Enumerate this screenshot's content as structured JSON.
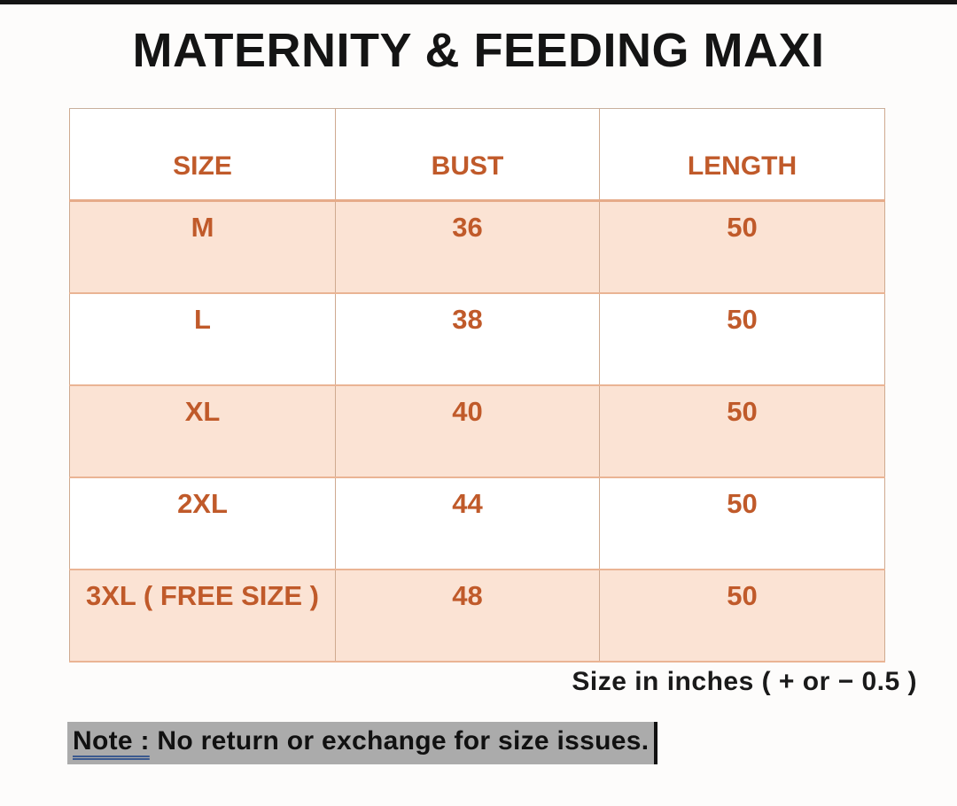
{
  "title": "MATERNITY & FEEDING MAXI",
  "table": {
    "headers": [
      "SIZE",
      "BUST",
      "LENGTH"
    ],
    "rows": [
      [
        "M",
        "36",
        "50"
      ],
      [
        "L",
        "38",
        "50"
      ],
      [
        "XL",
        "40",
        "50"
      ],
      [
        "2XL",
        "44",
        "50"
      ],
      [
        "3XL ( FREE SIZE )",
        "48",
        "50"
      ]
    ]
  },
  "footnote": "Size in inches ( + or  − 0.5 )",
  "note": {
    "label": "Note :",
    "text": " No return or exchange for size issues."
  },
  "colors": {
    "accent_text": "#c05a2a",
    "shaded_row_fill": "#fbe3d4",
    "table_border": "#eab494",
    "note_background": "#ababab",
    "note_underline": "#3c5a8f",
    "title_text": "#141414"
  }
}
